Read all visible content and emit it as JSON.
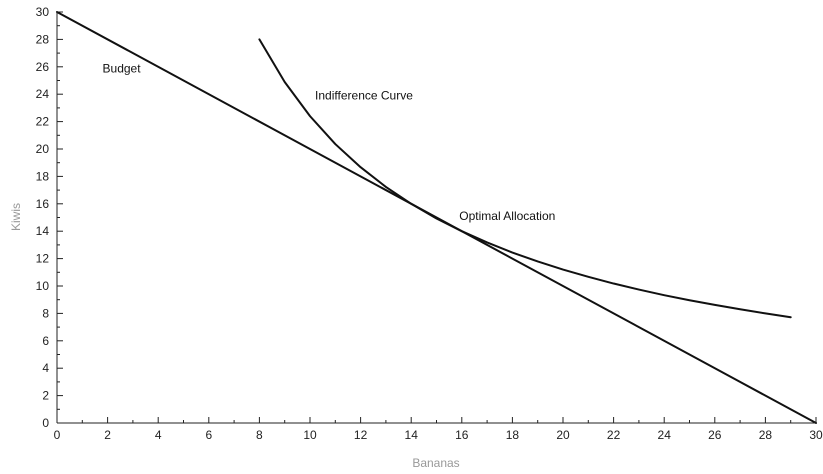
{
  "chart_data": {
    "type": "line",
    "xlabel": "Bananas",
    "ylabel": "Kiwis",
    "xlim": [
      0,
      30
    ],
    "ylim": [
      0,
      30
    ],
    "x_ticks": [
      0,
      2,
      4,
      6,
      8,
      10,
      12,
      14,
      16,
      18,
      20,
      22,
      24,
      26,
      28,
      30
    ],
    "y_ticks": [
      0,
      2,
      4,
      6,
      8,
      10,
      12,
      14,
      16,
      18,
      20,
      22,
      24,
      26,
      28,
      30
    ],
    "grid": false,
    "series": [
      {
        "id": "budget",
        "color": "#111111",
        "x": [
          0,
          30
        ],
        "y": [
          30,
          0
        ]
      },
      {
        "id": "indifference",
        "color": "#111111",
        "x": [
          8,
          9,
          10,
          11,
          12,
          13,
          14,
          15,
          16,
          17,
          18,
          19,
          20,
          21,
          22,
          23,
          24,
          25,
          26,
          27,
          28,
          29
        ],
        "y": [
          28,
          24.89,
          22.4,
          20.36,
          18.67,
          17.23,
          16.0,
          14.93,
          14.0,
          13.18,
          12.44,
          11.79,
          11.2,
          10.67,
          10.18,
          9.74,
          9.33,
          8.96,
          8.62,
          8.3,
          8.0,
          7.72
        ]
      }
    ],
    "annotations": [
      {
        "id": "budget",
        "text": "Budget",
        "x": 1.8,
        "y": 25.6
      },
      {
        "id": "indifference",
        "text": "Indifference Curve",
        "x": 10.2,
        "y": 23.6
      },
      {
        "id": "optimal",
        "text": "Optimal Allocation",
        "x": 15.9,
        "y": 14.8
      }
    ]
  }
}
